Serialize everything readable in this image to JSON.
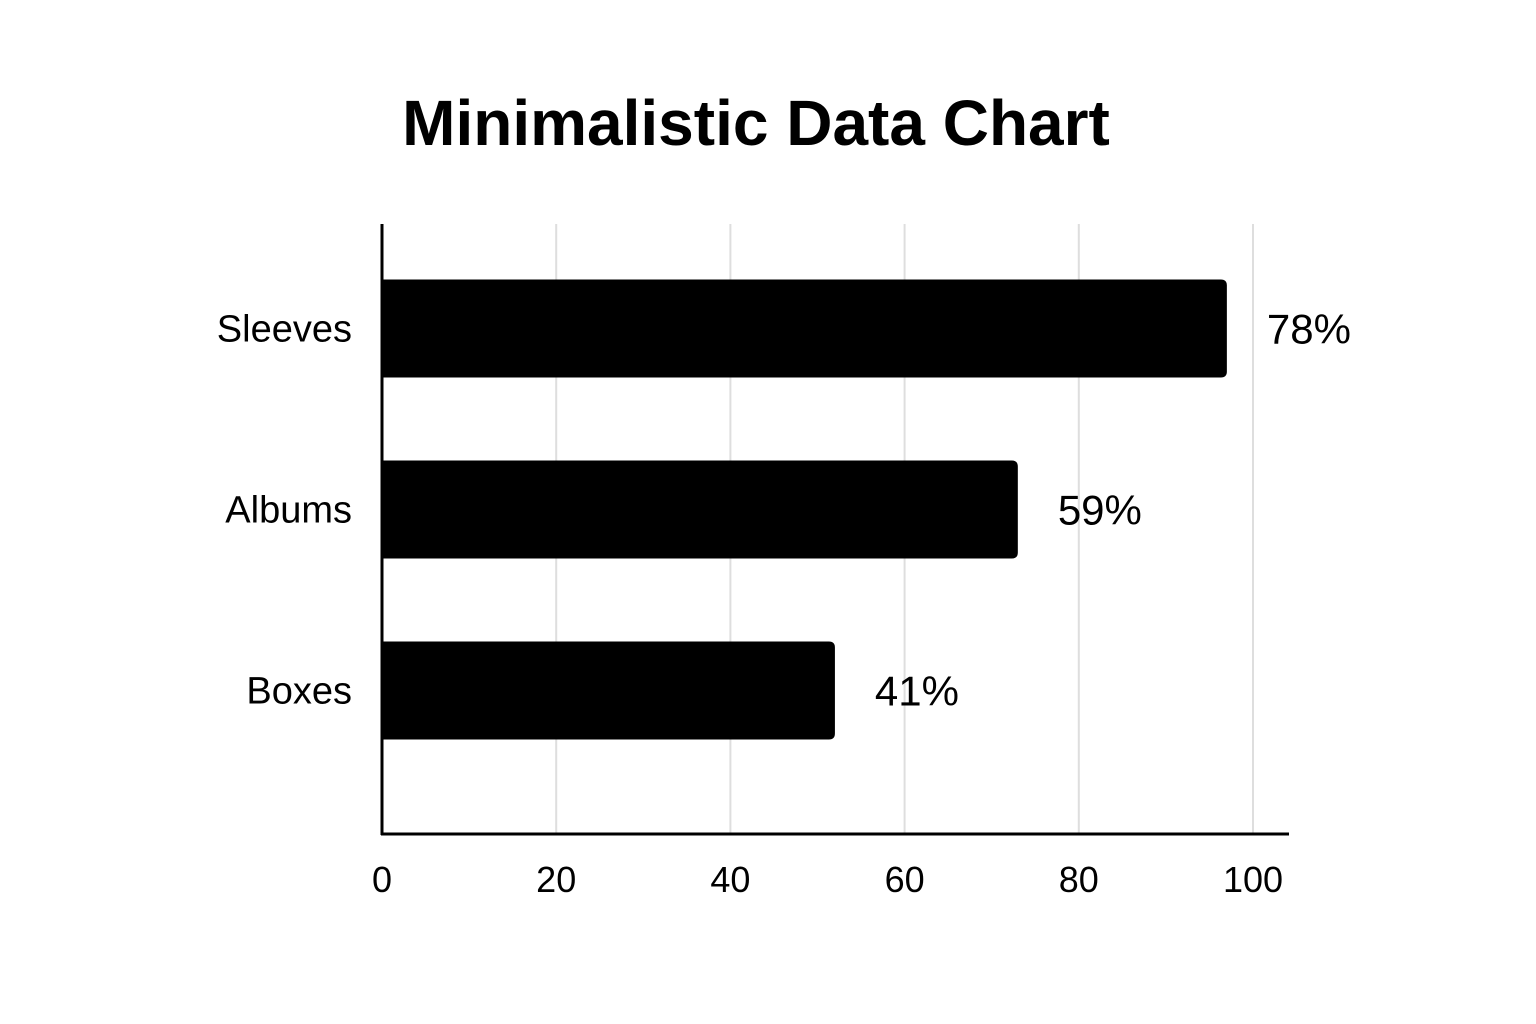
{
  "chart_data": {
    "type": "bar",
    "orientation": "horizontal",
    "title": "Minimalistic Data Chart",
    "xlabel": "",
    "ylabel": "",
    "categories": [
      "Sleeves",
      "Albums",
      "Boxes"
    ],
    "values": [
      97,
      73,
      52
    ],
    "value_labels": [
      "78%",
      "59%",
      "41%"
    ],
    "xlim": [
      0,
      104
    ],
    "x_ticks": [
      0,
      20,
      40,
      60,
      80,
      100
    ],
    "grid": true,
    "legend": "none",
    "colors": {
      "bar": "#000000",
      "grid": "#dedede",
      "axis": "#000000",
      "background": "#ffffff"
    }
  }
}
